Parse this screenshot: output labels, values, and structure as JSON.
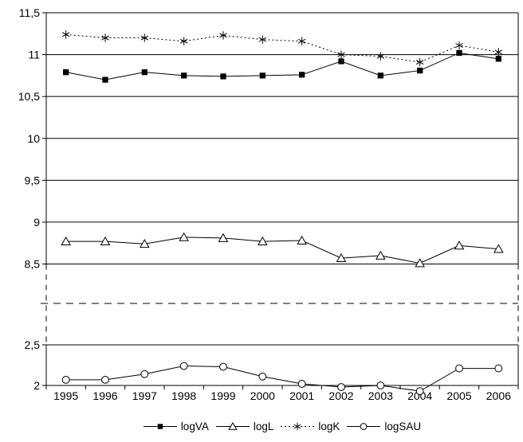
{
  "chart_data": {
    "type": "line",
    "title": "",
    "xlabel": "",
    "ylabel": "",
    "grid": true,
    "legend_position": "bottom",
    "decimal_separator": ",",
    "x": [
      "1995",
      "1996",
      "1997",
      "1998",
      "1999",
      "2000",
      "2001",
      "2002",
      "2003",
      "2004",
      "2005",
      "2006"
    ],
    "series": [
      {
        "name": "logVA",
        "marker": "square-filled",
        "line": "solid",
        "values": [
          10.79,
          10.7,
          10.79,
          10.75,
          10.74,
          10.75,
          10.76,
          10.92,
          10.75,
          10.81,
          11.02,
          10.95
        ]
      },
      {
        "name": "logL",
        "marker": "triangle-open",
        "line": "solid",
        "values": [
          8.77,
          8.77,
          8.74,
          8.82,
          8.81,
          8.77,
          8.78,
          8.57,
          8.6,
          8.51,
          8.72,
          8.68
        ]
      },
      {
        "name": "logK",
        "marker": "asterisk",
        "line": "dotted",
        "values": [
          11.24,
          11.2,
          11.2,
          11.16,
          11.23,
          11.18,
          11.16,
          11.0,
          10.98,
          10.91,
          11.11,
          11.03
        ]
      },
      {
        "name": "logSAU",
        "marker": "circle-open",
        "line": "solid",
        "values": [
          2.07,
          2.07,
          2.14,
          2.24,
          2.23,
          2.11,
          2.02,
          1.98,
          2.0,
          1.93,
          2.21,
          2.21
        ]
      }
    ],
    "y_axis": {
      "upper_segment": {
        "min": 8.5,
        "max": 11.5,
        "ticks": [
          {
            "label": "11,5",
            "value": 11.5
          },
          {
            "label": "11",
            "value": 11.0
          },
          {
            "label": "10,5",
            "value": 10.5
          },
          {
            "label": "10",
            "value": 10.0
          },
          {
            "label": "9,5",
            "value": 9.5
          },
          {
            "label": "9",
            "value": 9.0
          },
          {
            "label": "8,5",
            "value": 8.5
          }
        ]
      },
      "lower_segment": {
        "min": 2.0,
        "max": 2.5,
        "ticks": [
          {
            "label": "2,5",
            "value": 2.5
          },
          {
            "label": "2",
            "value": 2.0
          }
        ]
      },
      "axis_break": {
        "between": [
          2.5,
          8.5
        ],
        "style": "dashed"
      }
    },
    "colors": {
      "foreground": "#000000",
      "background": "#ffffff"
    }
  }
}
